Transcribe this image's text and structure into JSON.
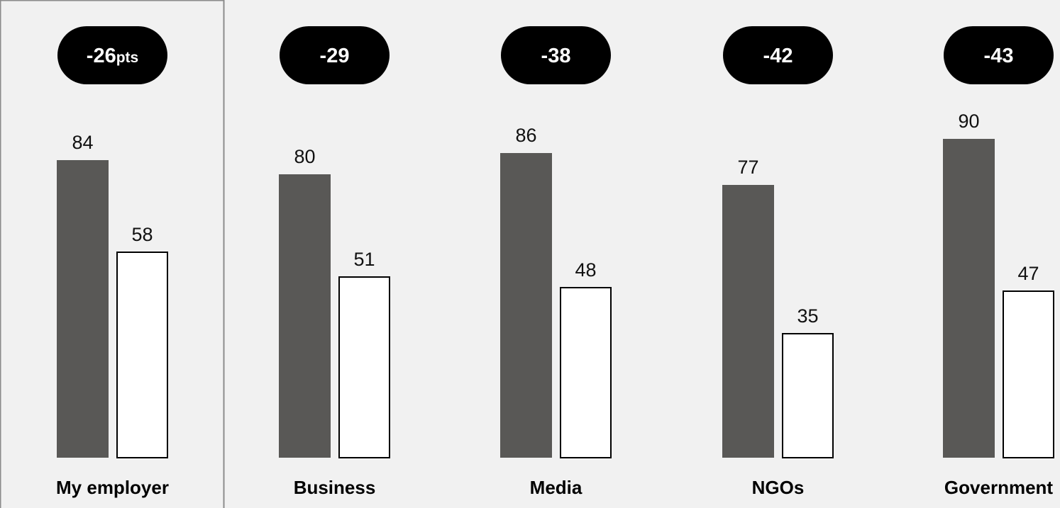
{
  "chart_data": {
    "type": "bar",
    "categories": [
      "My employer",
      "Business",
      "Media",
      "NGOs",
      "Government"
    ],
    "series": [
      {
        "values": [
          84,
          80,
          86,
          77,
          90
        ]
      },
      {
        "values": [
          58,
          51,
          48,
          35,
          47
        ]
      }
    ],
    "gap_labels": [
      "-26",
      "-29",
      "-38",
      "-42",
      "-43"
    ],
    "gap_unit": "pts",
    "ylim": [
      0,
      100
    ],
    "grid": false,
    "legend": "none",
    "highlighted_category": "My employer",
    "colors": {
      "series_1": "#595856",
      "series_2": "#ffffff",
      "pill": "#000000",
      "background": "#f1f1f1",
      "highlight_border": "#8c8c8c"
    }
  }
}
